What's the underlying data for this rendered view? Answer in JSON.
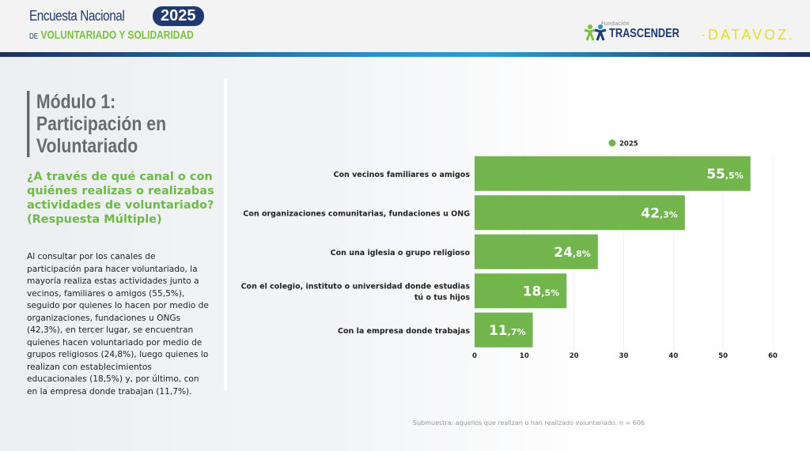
{
  "header": {
    "logo_line1": "Encuesta Nacional",
    "logo_year": "2025",
    "logo_line2_prefix": "DE",
    "logo_line2": "VOLUNTARIADO Y SOLIDARIDAD",
    "partner_small": "Fundación",
    "partner_name": "TRASCENDER",
    "datavoz": "·DATAVOZ."
  },
  "left": {
    "module_title": [
      "Módulo 1:",
      "Participación en",
      "Voluntariado"
    ],
    "question": "¿A través de qué canal o con quiénes realizas o realizabas actividades de voluntariado? (Respuesta Múltiple)",
    "description": "Al consultar por los canales de participación para hacer voluntariado, la mayoría realiza estas actividades junto a vecinos, familiares o amigos (55,5%), seguido por quienes lo hacen por medio de organizaciones, fundaciones u ONGs (42,3%), en tercer lugar, se encuentran quienes hacen voluntariado por medio de grupos religiosos (24,8%), luego quienes lo realizan con establecimientos educacionales (18,5%) y, por último, con en la empresa donde trabajan (11,7%)."
  },
  "chart_data": {
    "type": "bar",
    "orientation": "horizontal",
    "categories": [
      [
        "Con vecinos familiares o amigos"
      ],
      [
        "Con organizaciones comunitarias, fundaciones u ONG"
      ],
      [
        "Con una iglesia o grupo religioso"
      ],
      [
        "Con el colegio, instituto o universidad donde estudias",
        "tú o tus hijos"
      ],
      [
        "Con la empresa donde trabajas"
      ]
    ],
    "series": [
      {
        "name": "2025",
        "values": [
          55.5,
          42.3,
          24.8,
          18.5,
          11.7
        ],
        "labels": [
          [
            "55",
            ",5%"
          ],
          [
            "42",
            ",3%"
          ],
          [
            "24",
            ",8%"
          ],
          [
            "18",
            ",5%"
          ],
          [
            "11",
            ",7%"
          ]
        ]
      }
    ],
    "xlim": [
      0,
      60
    ],
    "xticks": [
      0,
      10,
      20,
      30,
      40,
      50,
      60
    ],
    "legend": "top",
    "grid": true,
    "color": "#72b54d"
  },
  "footnote": "Submuestra: aquellos que realizan o han realizado voluntariado. n = 606"
}
